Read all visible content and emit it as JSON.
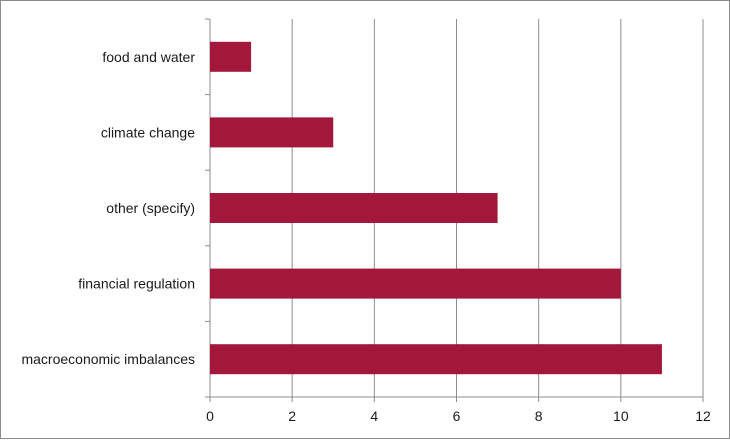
{
  "chart_data": {
    "type": "bar",
    "orientation": "horizontal",
    "categories": [
      "food and water",
      "climate change",
      "other (specify)",
      "financial regulation",
      "macroeconomic imbalances"
    ],
    "values": [
      1,
      3,
      7,
      10,
      11
    ],
    "xlim": [
      0,
      12
    ],
    "xticks": [
      0,
      2,
      4,
      6,
      8,
      10,
      12
    ],
    "grid": "vertical",
    "bar_color": "#a3173a",
    "title": "",
    "xlabel": "",
    "ylabel": ""
  }
}
